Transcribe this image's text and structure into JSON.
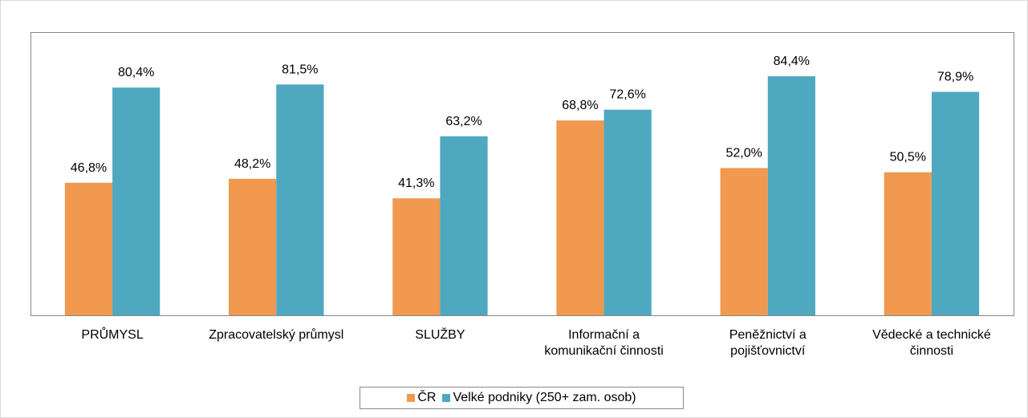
{
  "chart_data": {
    "type": "bar",
    "categories": [
      "PRŮMYSL",
      "Zpracovatelský průmysl",
      "SLUŽBY",
      "Informační a komunikační činnosti",
      "Peněžnictví a pojišťovnictví",
      "Vědecké a technické činnosti"
    ],
    "series": [
      {
        "name": "ČR",
        "color": "#f0994f",
        "values": [
          46.8,
          48.2,
          41.3,
          68.8,
          52.0,
          50.5
        ],
        "value_labels": [
          "46,8%",
          "48,2%",
          "41,3%",
          "68,8%",
          "52,0%",
          "50,5%"
        ]
      },
      {
        "name": "Velké podniky (250+ zam. osob)",
        "color": "#4ea8c0",
        "values": [
          80.4,
          81.5,
          63.2,
          72.6,
          84.4,
          78.9
        ],
        "value_labels": [
          "80,4%",
          "81,5%",
          "63,2%",
          "72,6%",
          "84,4%",
          "78,9%"
        ]
      }
    ],
    "ylim": [
      0,
      100
    ],
    "legend": "bottom"
  }
}
